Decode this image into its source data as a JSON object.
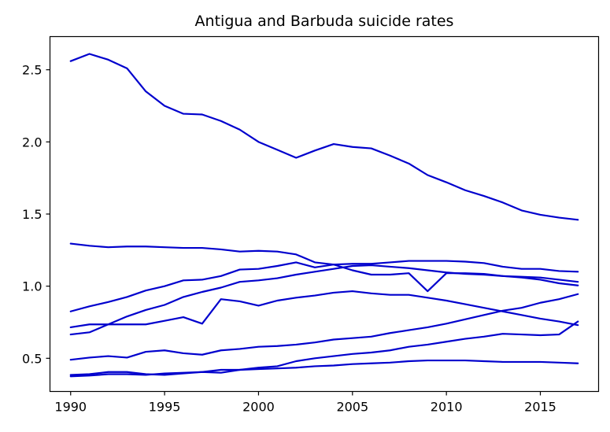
{
  "chart_data": {
    "type": "line",
    "title": "Antigua and Barbuda suicide rates",
    "xlabel": "",
    "ylabel": "",
    "xlim": [
      1988.9,
      2018.1
    ],
    "ylim": [
      0.27,
      2.73
    ],
    "xticks": [
      1990,
      1995,
      2000,
      2005,
      2010,
      2015
    ],
    "yticks": [
      0.5,
      1.0,
      1.5,
      2.0,
      2.5
    ],
    "xtick_labels": [
      "1990",
      "1995",
      "2000",
      "2005",
      "2010",
      "2015"
    ],
    "ytick_labels": [
      "0.5",
      "1.0",
      "1.5",
      "2.0",
      "2.5"
    ],
    "grid": false,
    "legend": "none",
    "line_color": "#0000cd",
    "x": [
      1990,
      1991,
      1992,
      1993,
      1994,
      1995,
      1996,
      1997,
      1998,
      1999,
      2000,
      2001,
      2002,
      2003,
      2004,
      2005,
      2006,
      2007,
      2008,
      2009,
      2010,
      2011,
      2012,
      2013,
      2014,
      2015,
      2016,
      2017
    ],
    "series": [
      {
        "values": [
          2.56,
          2.61,
          2.57,
          2.51,
          2.35,
          2.25,
          2.195,
          2.19,
          2.145,
          2.085,
          2.0,
          1.945,
          1.89,
          1.94,
          1.985,
          1.965,
          1.955,
          1.905,
          1.85,
          1.77,
          1.72,
          1.665,
          1.625,
          1.58,
          1.525,
          1.495,
          1.475,
          1.46
        ]
      },
      {
        "values": [
          1.295,
          1.28,
          1.27,
          1.275,
          1.275,
          1.27,
          1.265,
          1.265,
          1.255,
          1.24,
          1.245,
          1.24,
          1.22,
          1.165,
          1.15,
          1.11,
          1.08,
          1.08,
          1.09,
          0.965,
          1.09,
          1.09,
          1.085,
          1.07,
          1.065,
          1.06,
          1.045,
          1.03
        ]
      },
      {
        "values": [
          0.825,
          0.86,
          0.89,
          0.925,
          0.97,
          1.0,
          1.04,
          1.045,
          1.07,
          1.115,
          1.12,
          1.14,
          1.165,
          1.13,
          1.15,
          1.155,
          1.155,
          1.165,
          1.175,
          1.175,
          1.175,
          1.17,
          1.16,
          1.135,
          1.12,
          1.12,
          1.105,
          1.1
        ]
      },
      {
        "values": [
          0.665,
          0.68,
          0.735,
          0.79,
          0.835,
          0.87,
          0.925,
          0.96,
          0.99,
          1.03,
          1.04,
          1.055,
          1.08,
          1.1,
          1.12,
          1.14,
          1.145,
          1.135,
          1.125,
          1.11,
          1.095,
          1.085,
          1.08,
          1.07,
          1.06,
          1.045,
          1.02,
          1.005
        ]
      },
      {
        "values": [
          0.715,
          0.735,
          0.735,
          0.735,
          0.735,
          0.76,
          0.785,
          0.74,
          0.91,
          0.895,
          0.865,
          0.9,
          0.92,
          0.935,
          0.955,
          0.965,
          0.95,
          0.94,
          0.94,
          0.92,
          0.9,
          0.875,
          0.85,
          0.825,
          0.8,
          0.775,
          0.755,
          0.73
        ]
      },
      {
        "values": [
          0.49,
          0.505,
          0.515,
          0.505,
          0.545,
          0.555,
          0.535,
          0.525,
          0.555,
          0.565,
          0.58,
          0.585,
          0.595,
          0.61,
          0.63,
          0.64,
          0.65,
          0.675,
          0.695,
          0.715,
          0.74,
          0.77,
          0.8,
          0.83,
          0.85,
          0.885,
          0.91,
          0.945
        ]
      },
      {
        "values": [
          0.385,
          0.39,
          0.405,
          0.405,
          0.39,
          0.385,
          0.395,
          0.405,
          0.42,
          0.42,
          0.425,
          0.43,
          0.435,
          0.445,
          0.45,
          0.46,
          0.465,
          0.47,
          0.48,
          0.485,
          0.485,
          0.485,
          0.48,
          0.475,
          0.475,
          0.475,
          0.47,
          0.465
        ]
      },
      {
        "values": [
          0.375,
          0.38,
          0.39,
          0.39,
          0.385,
          0.395,
          0.4,
          0.405,
          0.4,
          0.42,
          0.435,
          0.445,
          0.48,
          0.5,
          0.515,
          0.53,
          0.54,
          0.555,
          0.58,
          0.595,
          0.615,
          0.635,
          0.65,
          0.67,
          0.665,
          0.66,
          0.665,
          0.755
        ]
      }
    ]
  }
}
